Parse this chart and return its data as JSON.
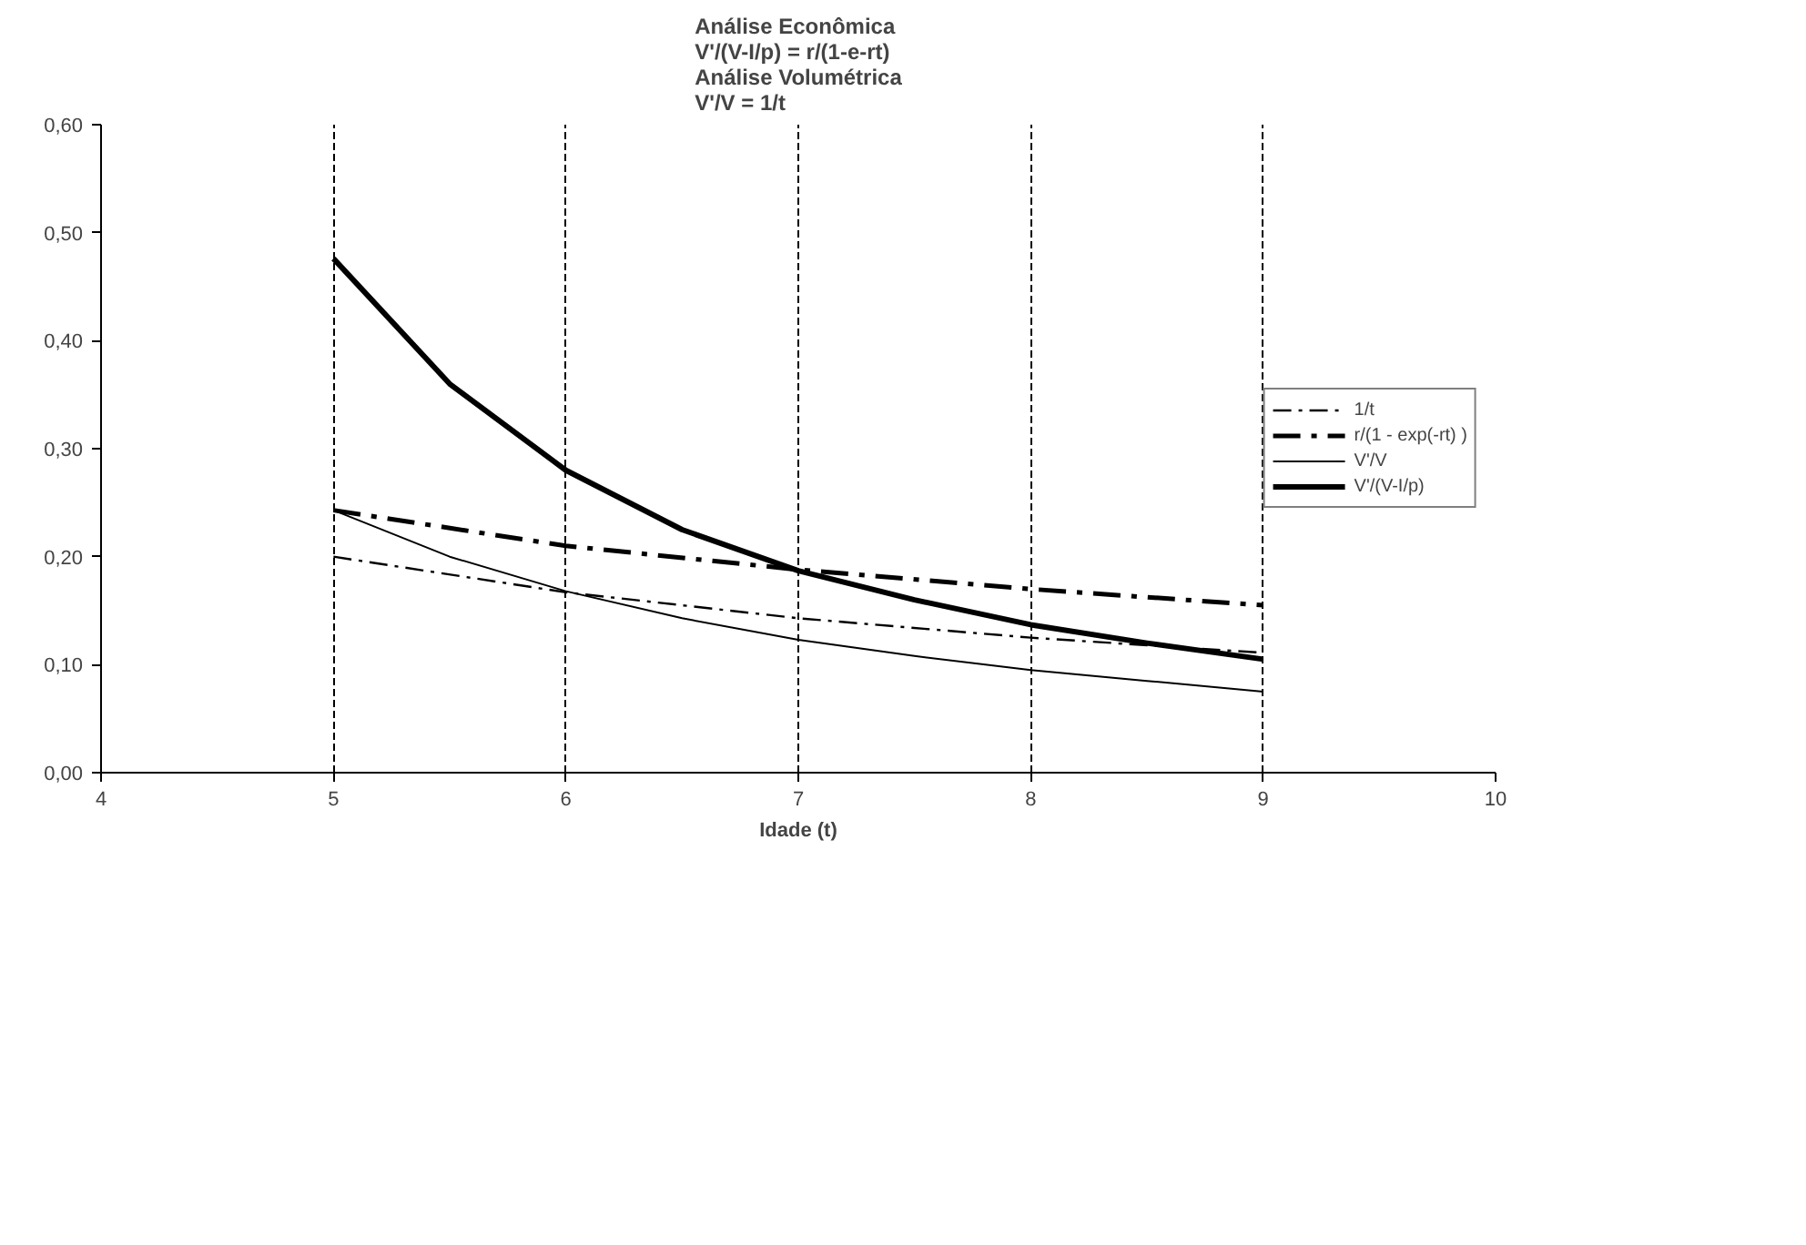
{
  "chart_data": {
    "type": "line",
    "title": "Análise Econômica\nV'/(V-I/p) = r/(1-e-rt)\nAnálise Volumétrica\nV'/V = 1/t",
    "xlabel": "Idade (t)",
    "xlim": [
      4,
      10
    ],
    "xticks": [
      4,
      5,
      6,
      7,
      8,
      9,
      10
    ],
    "ylim": [
      0,
      0.6
    ],
    "yticks": [
      {
        "value": 0,
        "label": "0,00"
      },
      {
        "value": 0.1,
        "label": "0,10"
      },
      {
        "value": 0.2,
        "label": "0,20"
      },
      {
        "value": 0.3,
        "label": "0,30"
      },
      {
        "value": 0.4,
        "label": "0,40"
      },
      {
        "value": 0.5,
        "label": "0,50"
      },
      {
        "value": 0.6,
        "label": "0,60"
      }
    ],
    "grid": "x",
    "legend": "right",
    "marker": "none",
    "series": [
      {
        "name": "1/t",
        "color": "#000000",
        "line_style": "dashdot",
        "x": [
          5,
          6,
          7,
          8,
          9
        ],
        "values": [
          0.2,
          0.167,
          0.143,
          0.125,
          0.111
        ]
      },
      {
        "name": "r/(1 - exp(-rt) )",
        "color": "#000000",
        "line_style": "dashdot",
        "x": [
          5,
          6,
          7,
          8,
          9
        ],
        "values": [
          0.243,
          0.21,
          0.188,
          0.17,
          0.155
        ]
      },
      {
        "name": "V'/V",
        "color": "#000000",
        "line_style": "solid",
        "x": [
          5,
          5.5,
          6,
          6.5,
          7,
          7.5,
          8,
          8.5,
          9
        ],
        "values": [
          0.243,
          0.2,
          0.168,
          0.143,
          0.123,
          0.108,
          0.095,
          0.085,
          0.075
        ]
      },
      {
        "name": "V'/(V-I/p)",
        "color": "#000000",
        "line_style": "solid",
        "x": [
          5,
          5.5,
          6,
          6.5,
          7,
          7.5,
          8,
          8.5,
          9
        ],
        "values": [
          0.476,
          0.36,
          0.28,
          0.225,
          0.187,
          0.16,
          0.137,
          0.12,
          0.105
        ]
      }
    ]
  }
}
